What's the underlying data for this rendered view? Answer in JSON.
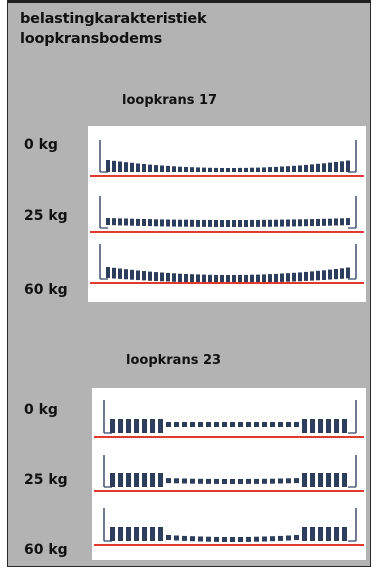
{
  "title": {
    "line1": "belastingkarakteristiek",
    "line2": "loopkransbodems"
  },
  "sections": [
    {
      "heading": "loopkrans 17",
      "loads": [
        "0 kg",
        "25 kg",
        "60 kg"
      ]
    },
    {
      "heading": "loopkrans 23",
      "loads": [
        "0 kg",
        "25 kg",
        "60 kg"
      ]
    }
  ],
  "colors": {
    "background": "#b3b3b3",
    "panel": "#ffffff",
    "baseline": "#e03a2e",
    "rung": "#2d3e5c",
    "frame": "#4a5a78"
  }
}
